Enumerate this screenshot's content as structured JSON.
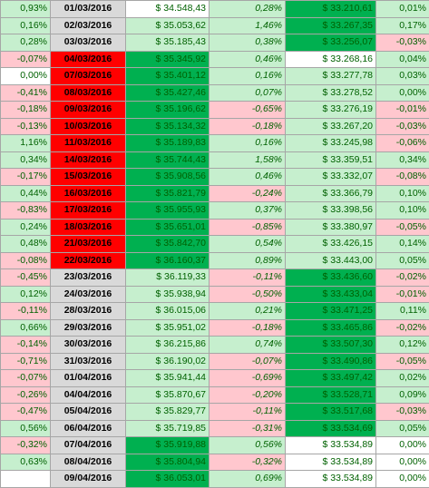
{
  "colors": {
    "positive_fill": "#c6efce",
    "positive_text": "#006100",
    "negative_fill": "#ffc7ce",
    "negative_text": "#9c0006",
    "strong_green": "#00b050",
    "strong_red": "#ff0000",
    "date_fill": "#d9d9d9"
  },
  "rows": [
    {
      "pct1": "0,93%",
      "pct1_bg": "pos",
      "date": "01/03/2016",
      "date_bg": "grey",
      "val1": "$ 34.548,43",
      "val1_bg": "white",
      "pct2": "0,28%",
      "pct2_bg": "pos",
      "val2": "$ 33.210,61",
      "val2_bg": "green",
      "pct3": "0,01%",
      "pct3_bg": "pos"
    },
    {
      "pct1": "0,16%",
      "pct1_bg": "pos",
      "date": "02/03/2016",
      "date_bg": "grey",
      "val1": "$ 35.053,62",
      "val1_bg": "pos",
      "pct2": "1,46%",
      "pct2_bg": "pos",
      "val2": "$ 33.267,35",
      "val2_bg": "green",
      "pct3": "0,17%",
      "pct3_bg": "pos"
    },
    {
      "pct1": "0,28%",
      "pct1_bg": "pos",
      "date": "03/03/2016",
      "date_bg": "grey",
      "val1": "$ 35.185,43",
      "val1_bg": "pos",
      "pct2": "0,38%",
      "pct2_bg": "pos",
      "val2": "$ 33.256,07",
      "val2_bg": "green",
      "pct3": "-0,03%",
      "pct3_bg": "neg"
    },
    {
      "pct1": "-0,07%",
      "pct1_bg": "neg",
      "date": "04/03/2016",
      "date_bg": "red",
      "val1": "$ 35.345,92",
      "val1_bg": "green",
      "pct2": "0,46%",
      "pct2_bg": "pos",
      "val2": "$ 33.268,16",
      "val2_bg": "white",
      "pct3": "0,04%",
      "pct3_bg": "pos"
    },
    {
      "pct1": "0,00%",
      "pct1_bg": "white",
      "date": "07/03/2016",
      "date_bg": "red",
      "val1": "$ 35.401,12",
      "val1_bg": "green",
      "pct2": "0,16%",
      "pct2_bg": "pos",
      "val2": "$ 33.277,78",
      "val2_bg": "pos",
      "pct3": "0,03%",
      "pct3_bg": "pos"
    },
    {
      "pct1": "-0,41%",
      "pct1_bg": "neg",
      "date": "08/03/2016",
      "date_bg": "red",
      "val1": "$ 35.427,46",
      "val1_bg": "green",
      "pct2": "0,07%",
      "pct2_bg": "pos",
      "val2": "$ 33.278,52",
      "val2_bg": "pos",
      "pct3": "0,00%",
      "pct3_bg": "pos"
    },
    {
      "pct1": "-0,18%",
      "pct1_bg": "neg",
      "date": "09/03/2016",
      "date_bg": "red",
      "val1": "$ 35.196,62",
      "val1_bg": "green",
      "pct2": "-0,65%",
      "pct2_bg": "neg",
      "val2": "$ 33.276,19",
      "val2_bg": "pos",
      "pct3": "-0,01%",
      "pct3_bg": "neg"
    },
    {
      "pct1": "-0,13%",
      "pct1_bg": "neg",
      "date": "10/03/2016",
      "date_bg": "red",
      "val1": "$ 35.134,32",
      "val1_bg": "green",
      "pct2": "-0,18%",
      "pct2_bg": "neg",
      "val2": "$ 33.267,20",
      "val2_bg": "pos",
      "pct3": "-0,03%",
      "pct3_bg": "neg"
    },
    {
      "pct1": "1,16%",
      "pct1_bg": "pos",
      "date": "11/03/2016",
      "date_bg": "red",
      "val1": "$ 35.189,83",
      "val1_bg": "green",
      "pct2": "0,16%",
      "pct2_bg": "pos",
      "val2": "$ 33.245,98",
      "val2_bg": "pos",
      "pct3": "-0,06%",
      "pct3_bg": "neg"
    },
    {
      "pct1": "0,34%",
      "pct1_bg": "pos",
      "date": "14/03/2016",
      "date_bg": "red",
      "val1": "$ 35.744,43",
      "val1_bg": "green",
      "pct2": "1,58%",
      "pct2_bg": "pos",
      "val2": "$ 33.359,51",
      "val2_bg": "pos",
      "pct3": "0,34%",
      "pct3_bg": "pos"
    },
    {
      "pct1": "-0,17%",
      "pct1_bg": "neg",
      "date": "15/03/2016",
      "date_bg": "red",
      "val1": "$ 35.908,56",
      "val1_bg": "green",
      "pct2": "0,46%",
      "pct2_bg": "pos",
      "val2": "$ 33.332,07",
      "val2_bg": "pos",
      "pct3": "-0,08%",
      "pct3_bg": "neg"
    },
    {
      "pct1": "0,44%",
      "pct1_bg": "pos",
      "date": "16/03/2016",
      "date_bg": "red",
      "val1": "$ 35.821,79",
      "val1_bg": "green",
      "pct2": "-0,24%",
      "pct2_bg": "neg",
      "val2": "$ 33.366,79",
      "val2_bg": "pos",
      "pct3": "0,10%",
      "pct3_bg": "pos"
    },
    {
      "pct1": "-0,83%",
      "pct1_bg": "neg",
      "date": "17/03/2016",
      "date_bg": "red",
      "val1": "$ 35.955,93",
      "val1_bg": "green",
      "pct2": "0,37%",
      "pct2_bg": "pos",
      "val2": "$ 33.398,56",
      "val2_bg": "pos",
      "pct3": "0,10%",
      "pct3_bg": "pos"
    },
    {
      "pct1": "0,24%",
      "pct1_bg": "pos",
      "date": "18/03/2016",
      "date_bg": "red",
      "val1": "$ 35.651,01",
      "val1_bg": "green",
      "pct2": "-0,85%",
      "pct2_bg": "neg",
      "val2": "$ 33.380,97",
      "val2_bg": "pos",
      "pct3": "-0,05%",
      "pct3_bg": "neg"
    },
    {
      "pct1": "0,48%",
      "pct1_bg": "pos",
      "date": "21/03/2016",
      "date_bg": "red",
      "val1": "$ 35.842,70",
      "val1_bg": "green",
      "pct2": "0,54%",
      "pct2_bg": "pos",
      "val2": "$ 33.426,15",
      "val2_bg": "pos",
      "pct3": "0,14%",
      "pct3_bg": "pos"
    },
    {
      "pct1": "-0,08%",
      "pct1_bg": "neg",
      "date": "22/03/2016",
      "date_bg": "red",
      "val1": "$ 36.160,37",
      "val1_bg": "green",
      "pct2": "0,89%",
      "pct2_bg": "pos",
      "val2": "$ 33.443,00",
      "val2_bg": "pos",
      "pct3": "0,05%",
      "pct3_bg": "pos"
    },
    {
      "pct1": "-0,45%",
      "pct1_bg": "neg",
      "date": "23/03/2016",
      "date_bg": "grey",
      "val1": "$ 36.119,33",
      "val1_bg": "pos",
      "pct2": "-0,11%",
      "pct2_bg": "neg",
      "val2": "$ 33.436,60",
      "val2_bg": "green",
      "pct3": "-0,02%",
      "pct3_bg": "neg"
    },
    {
      "pct1": "0,12%",
      "pct1_bg": "pos",
      "date": "24/03/2016",
      "date_bg": "grey",
      "val1": "$ 35.938,94",
      "val1_bg": "pos",
      "pct2": "-0,50%",
      "pct2_bg": "neg",
      "val2": "$ 33.433,04",
      "val2_bg": "green",
      "pct3": "-0,01%",
      "pct3_bg": "neg"
    },
    {
      "pct1": "-0,11%",
      "pct1_bg": "neg",
      "date": "28/03/2016",
      "date_bg": "grey",
      "val1": "$ 36.015,06",
      "val1_bg": "pos",
      "pct2": "0,21%",
      "pct2_bg": "pos",
      "val2": "$ 33.471,25",
      "val2_bg": "green",
      "pct3": "0,11%",
      "pct3_bg": "pos"
    },
    {
      "pct1": "0,66%",
      "pct1_bg": "pos",
      "date": "29/03/2016",
      "date_bg": "grey",
      "val1": "$ 35.951,02",
      "val1_bg": "pos",
      "pct2": "-0,18%",
      "pct2_bg": "neg",
      "val2": "$ 33.465,86",
      "val2_bg": "green",
      "pct3": "-0,02%",
      "pct3_bg": "neg"
    },
    {
      "pct1": "-0,14%",
      "pct1_bg": "neg",
      "date": "30/03/2016",
      "date_bg": "grey",
      "val1": "$ 36.215,86",
      "val1_bg": "pos",
      "pct2": "0,74%",
      "pct2_bg": "pos",
      "val2": "$ 33.507,30",
      "val2_bg": "green",
      "pct3": "0,12%",
      "pct3_bg": "pos"
    },
    {
      "pct1": "-0,71%",
      "pct1_bg": "neg",
      "date": "31/03/2016",
      "date_bg": "grey",
      "val1": "$ 36.190,02",
      "val1_bg": "pos",
      "pct2": "-0,07%",
      "pct2_bg": "neg",
      "val2": "$ 33.490,86",
      "val2_bg": "green",
      "pct3": "-0,05%",
      "pct3_bg": "neg"
    },
    {
      "pct1": "-0,07%",
      "pct1_bg": "neg",
      "date": "01/04/2016",
      "date_bg": "grey",
      "val1": "$ 35.941,44",
      "val1_bg": "pos",
      "pct2": "-0,69%",
      "pct2_bg": "neg",
      "val2": "$ 33.497,42",
      "val2_bg": "green",
      "pct3": "0,02%",
      "pct3_bg": "pos"
    },
    {
      "pct1": "-0,26%",
      "pct1_bg": "neg",
      "date": "04/04/2016",
      "date_bg": "grey",
      "val1": "$ 35.870,67",
      "val1_bg": "pos",
      "pct2": "-0,20%",
      "pct2_bg": "neg",
      "val2": "$ 33.528,71",
      "val2_bg": "green",
      "pct3": "0,09%",
      "pct3_bg": "pos"
    },
    {
      "pct1": "-0,47%",
      "pct1_bg": "neg",
      "date": "05/04/2016",
      "date_bg": "grey",
      "val1": "$ 35.829,77",
      "val1_bg": "pos",
      "pct2": "-0,11%",
      "pct2_bg": "neg",
      "val2": "$ 33.517,68",
      "val2_bg": "green",
      "pct3": "-0,03%",
      "pct3_bg": "neg"
    },
    {
      "pct1": "0,56%",
      "pct1_bg": "pos",
      "date": "06/04/2016",
      "date_bg": "grey",
      "val1": "$ 35.719,85",
      "val1_bg": "pos",
      "pct2": "-0,31%",
      "pct2_bg": "neg",
      "val2": "$ 33.534,69",
      "val2_bg": "green",
      "pct3": "0,05%",
      "pct3_bg": "pos"
    },
    {
      "pct1": "-0,32%",
      "pct1_bg": "neg",
      "date": "07/04/2016",
      "date_bg": "grey",
      "val1": "$ 35.919,88",
      "val1_bg": "green",
      "pct2": "0,56%",
      "pct2_bg": "pos",
      "val2": "$ 33.534,89",
      "val2_bg": "white",
      "pct3": "0,00%",
      "pct3_bg": "white"
    },
    {
      "pct1": "0,63%",
      "pct1_bg": "pos",
      "date": "08/04/2016",
      "date_bg": "grey",
      "val1": "$ 35.804,94",
      "val1_bg": "green",
      "pct2": "-0,32%",
      "pct2_bg": "neg",
      "val2": "$ 33.534,89",
      "val2_bg": "white",
      "pct3": "0,00%",
      "pct3_bg": "white"
    },
    {
      "pct1": "",
      "pct1_bg": "white",
      "date": "09/04/2016",
      "date_bg": "grey",
      "val1": "$ 36.053,01",
      "val1_bg": "green",
      "pct2": "0,69%",
      "pct2_bg": "pos",
      "val2": "$ 33.534,89",
      "val2_bg": "white",
      "pct3": "0,00%",
      "pct3_bg": "white"
    }
  ]
}
